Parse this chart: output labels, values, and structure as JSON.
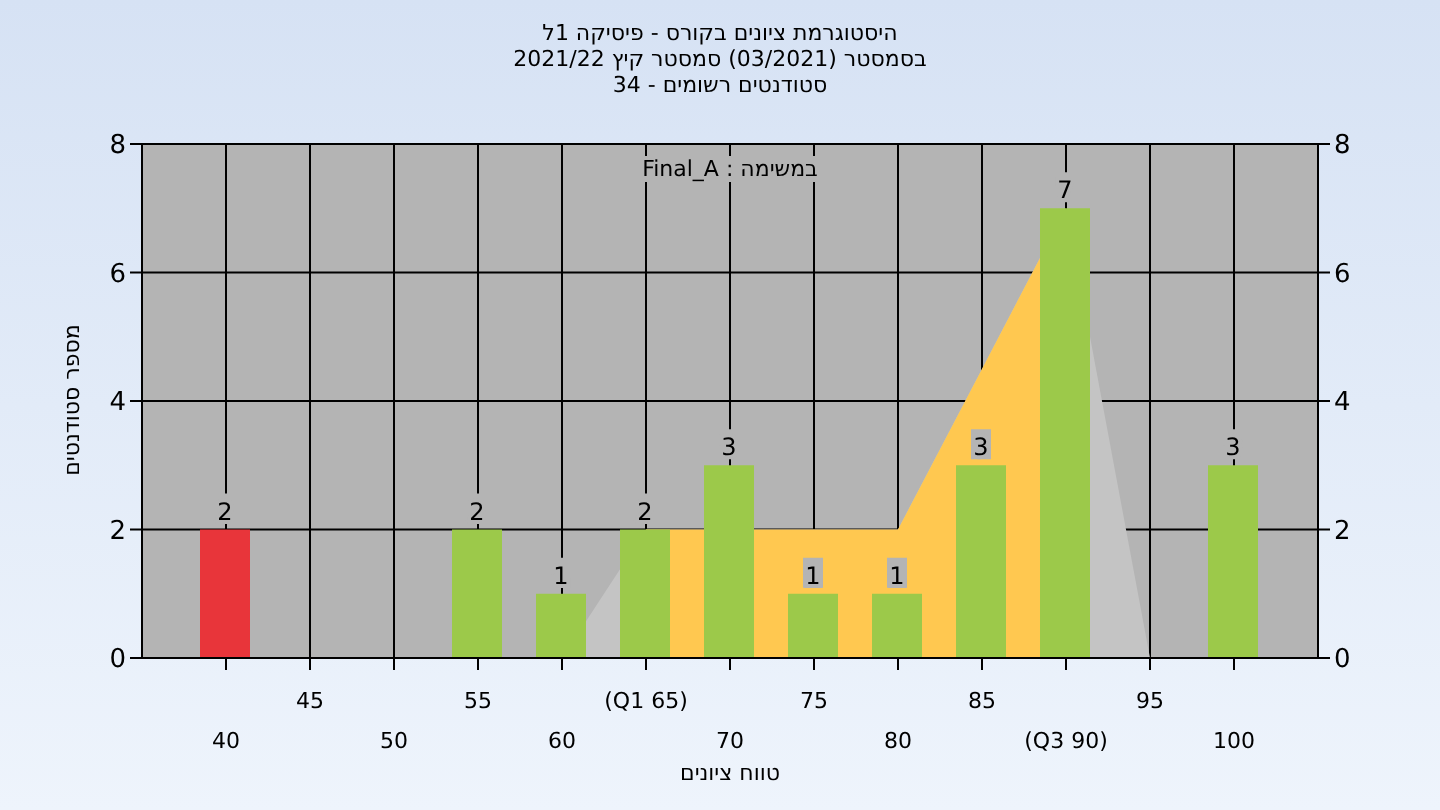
{
  "chart_data": {
    "type": "bar",
    "title": "היסטוגרמת ציונים בקורס - פיסיקה 1ל",
    "subtitle": "בסמסטר (03/2021) סמסטר קיץ 2021/22\nסטודנטים רשומים - 34",
    "xlabel": "טווח ציונים",
    "ylabel": "מספר סטודנטים",
    "annotations": [
      "במשימה : Final_A"
    ],
    "categories": [
      "40",
      "45",
      "50",
      "55",
      "60",
      "(Q1 65)",
      "70",
      "75",
      "80",
      "85",
      "(Q3 90)",
      "95",
      "100"
    ],
    "series": [
      {
        "type": "area",
        "color": "#c4c4c4",
        "values": [
          null,
          null,
          null,
          null,
          0,
          2,
          null,
          2,
          2,
          4.5,
          7,
          0,
          null
        ]
      },
      {
        "type": "area",
        "color": "#ffc850",
        "values": [
          null,
          null,
          null,
          null,
          null,
          2,
          null,
          2,
          2,
          4.5,
          7,
          null,
          null
        ]
      },
      {
        "color": "#9cc94a",
        "colors": [
          "#e8353a",
          "#9cc94a",
          "#9cc94a",
          "#9cc94a",
          "#9cc94a",
          "#9cc94a",
          "#9cc94a",
          "#9cc94a",
          "#9cc94a",
          "#9cc94a",
          "#9cc94a",
          "#9cc94a",
          "#9cc94a"
        ],
        "values": [
          2,
          0,
          0,
          2,
          1,
          2,
          3,
          1,
          1,
          3,
          7,
          0,
          3
        ],
        "value_labels": [
          "2",
          null,
          null,
          "2",
          "1",
          "2",
          "3",
          "1",
          "1",
          "3",
          "7",
          null,
          "3"
        ]
      }
    ],
    "ylim": [
      0,
      8
    ],
    "yticks": [
      0,
      2,
      4,
      6,
      8
    ],
    "y2lim": [
      0,
      8
    ],
    "y2ticks": [
      0,
      2,
      4,
      6,
      8
    ],
    "grid": true,
    "legend": false
  }
}
